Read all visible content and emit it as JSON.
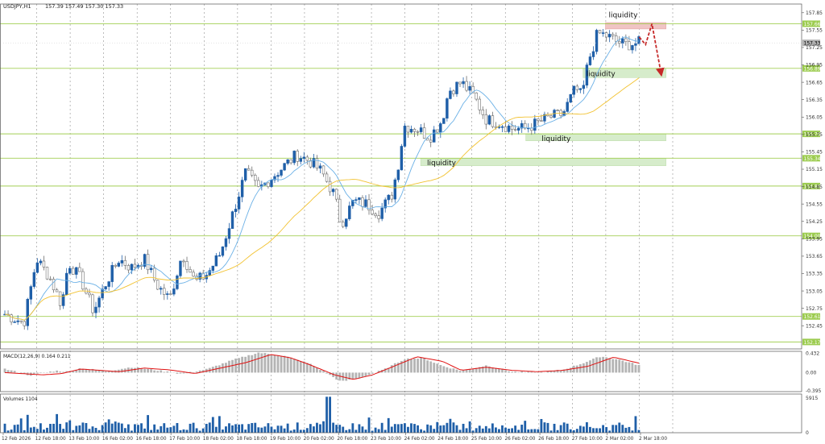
{
  "header": {
    "symbol_label": "USDJPY,H1",
    "ohlc_label": "157.39 157.49 157.30 157.33"
  },
  "colors": {
    "bull": "#1f5fa8",
    "bear": "#6e6e6e",
    "ma_fast": "#6ab0e6",
    "ma_slow": "#f2c230",
    "hline": "#a3cf55",
    "hline_badge": "#9ccc4f",
    "zone_green": "#d6eccb",
    "zone_red": "#f0c4c4",
    "arrow": "#c62828",
    "macd_line": "#e01010",
    "histogram": "#b4b4b4",
    "volume": "#1f5fa8",
    "grid": "#8f8f8f",
    "price_badge": "#b0b0b0"
  },
  "chart_data": [
    {
      "type": "candlestick",
      "title": "USDJPY,H1",
      "ylim": [
        152.05,
        158.0
      ],
      "y_ticks": [
        "157.85",
        "157.55",
        "157.25",
        "156.95",
        "156.65",
        "156.35",
        "156.05",
        "155.75",
        "155.45",
        "155.15",
        "154.85",
        "154.55",
        "154.25",
        "153.95",
        "153.65",
        "153.35",
        "153.05",
        "152.75",
        "152.45"
      ],
      "x_ticks": [
        "12 Feb 2026",
        "12 Feb 18:00",
        "13 Feb 10:00",
        "16 Feb 02:00",
        "16 Feb 18:00",
        "17 Feb 10:00",
        "18 Feb 02:00",
        "18 Feb 18:00",
        "19 Feb 10:00",
        "20 Feb 02:00",
        "20 Feb 18:00",
        "23 Feb 10:00",
        "24 Feb 02:00",
        "24 Feb 18:00",
        "25 Feb 10:00",
        "26 Feb 02:00",
        "26 Feb 18:00",
        "27 Feb 10:00",
        "2 Mar 02:00",
        "2 Mar 18:00"
      ],
      "current_price": "157.33",
      "horizontal_levels": [
        {
          "label": "157.66",
          "value": 157.66
        },
        {
          "label": "156.89",
          "value": 156.89
        },
        {
          "label": "155.76",
          "value": 155.76
        },
        {
          "label": "155.34",
          "value": 155.34
        },
        {
          "label": "154.86",
          "value": 154.86
        },
        {
          "label": "154.00",
          "value": 154.0
        },
        {
          "label": "152.61",
          "value": 152.61
        },
        {
          "label": "152.17",
          "value": 152.17
        }
      ],
      "zones": [
        {
          "kind": "red",
          "y_top": 157.68,
          "y_bottom": 157.57,
          "x_start": 0.945,
          "x_end": 1.04
        },
        {
          "kind": "green",
          "y_top": 156.89,
          "y_bottom": 156.73,
          "x_start": 0.91,
          "x_end": 1.04
        },
        {
          "kind": "green",
          "y_top": 155.76,
          "y_bottom": 155.64,
          "x_start": 0.82,
          "x_end": 1.04
        },
        {
          "kind": "green",
          "y_top": 155.34,
          "y_bottom": 155.21,
          "x_start": 0.655,
          "x_end": 1.04
        }
      ],
      "annotations": [
        {
          "text": "liquidity",
          "x_rel": 0.95,
          "y": 157.81
        },
        {
          "text": "liquidity",
          "x_rel": 0.915,
          "y": 156.8
        },
        {
          "text": "liquidity",
          "x_rel": 0.845,
          "y": 155.68
        },
        {
          "text": "liquidity",
          "x_rel": 0.665,
          "y": 155.26
        }
      ],
      "forecast_path": [
        {
          "x_rel": 0.998,
          "y": 157.43
        },
        {
          "x_rel": 1.008,
          "y": 157.3
        },
        {
          "x_rel": 1.018,
          "y": 157.66
        },
        {
          "x_rel": 1.032,
          "y": 156.82
        }
      ],
      "close_path": [
        [
          0,
          152.65
        ],
        [
          0.03,
          152.5
        ],
        [
          0.05,
          153.6
        ],
        [
          0.07,
          153.3
        ],
        [
          0.09,
          152.8
        ],
        [
          0.1,
          153.55
        ],
        [
          0.12,
          153.25
        ],
        [
          0.14,
          152.7
        ],
        [
          0.16,
          153.2
        ],
        [
          0.18,
          153.6
        ],
        [
          0.2,
          153.45
        ],
        [
          0.22,
          153.6
        ],
        [
          0.24,
          153.15
        ],
        [
          0.26,
          152.9
        ],
        [
          0.28,
          153.7
        ],
        [
          0.3,
          153.2
        ],
        [
          0.32,
          153.35
        ],
        [
          0.34,
          153.7
        ],
        [
          0.36,
          154.4
        ],
        [
          0.38,
          155.1
        ],
        [
          0.4,
          154.8
        ],
        [
          0.42,
          155.0
        ],
        [
          0.44,
          155.2
        ],
        [
          0.46,
          155.4
        ],
        [
          0.48,
          155.3
        ],
        [
          0.5,
          155.1
        ],
        [
          0.52,
          154.7
        ],
        [
          0.53,
          154.2
        ],
        [
          0.55,
          154.6
        ],
        [
          0.57,
          154.55
        ],
        [
          0.59,
          154.4
        ],
        [
          0.61,
          154.7
        ],
        [
          0.62,
          155.2
        ],
        [
          0.63,
          155.9
        ],
        [
          0.65,
          155.85
        ],
        [
          0.67,
          155.7
        ],
        [
          0.69,
          156.0
        ],
        [
          0.7,
          156.5
        ],
        [
          0.72,
          156.65
        ],
        [
          0.74,
          156.4
        ],
        [
          0.76,
          156.0
        ],
        [
          0.78,
          155.95
        ],
        [
          0.8,
          155.85
        ],
        [
          0.82,
          155.85
        ],
        [
          0.84,
          155.95
        ],
        [
          0.86,
          156.05
        ],
        [
          0.88,
          156.1
        ],
        [
          0.9,
          156.55
        ],
        [
          0.91,
          156.4
        ],
        [
          0.92,
          157.0
        ],
        [
          0.935,
          157.5
        ],
        [
          0.95,
          157.45
        ],
        [
          0.965,
          157.35
        ],
        [
          0.98,
          157.3
        ],
        [
          1.0,
          157.33
        ]
      ],
      "moving_averages": [
        {
          "color": "#6ab0e6",
          "period_bars": 10
        },
        {
          "color": "#f2c230",
          "period_bars": 36
        }
      ]
    },
    {
      "type": "macd",
      "label": "MACD(12,26,9) 0.164 0.211",
      "y_ticks": [
        "0.432",
        "0.00",
        "-0.395"
      ],
      "ylim": [
        -0.42,
        0.47
      ],
      "signal_path": [
        [
          0,
          0.0
        ],
        [
          0.06,
          -0.05
        ],
        [
          0.09,
          -0.02
        ],
        [
          0.12,
          0.08
        ],
        [
          0.15,
          0.05
        ],
        [
          0.18,
          0.02
        ],
        [
          0.22,
          0.1
        ],
        [
          0.26,
          0.06
        ],
        [
          0.3,
          -0.02
        ],
        [
          0.34,
          0.1
        ],
        [
          0.38,
          0.22
        ],
        [
          0.42,
          0.4
        ],
        [
          0.45,
          0.33
        ],
        [
          0.48,
          0.18
        ],
        [
          0.52,
          -0.05
        ],
        [
          0.55,
          -0.15
        ],
        [
          0.58,
          -0.05
        ],
        [
          0.61,
          0.12
        ],
        [
          0.65,
          0.35
        ],
        [
          0.69,
          0.25
        ],
        [
          0.72,
          0.05
        ],
        [
          0.76,
          0.12
        ],
        [
          0.8,
          0.05
        ],
        [
          0.84,
          0.02
        ],
        [
          0.88,
          0.05
        ],
        [
          0.92,
          0.14
        ],
        [
          0.96,
          0.34
        ],
        [
          1.0,
          0.211
        ]
      ],
      "hist_path": [
        [
          0,
          0.08
        ],
        [
          0.04,
          -0.06
        ],
        [
          0.08,
          0.04
        ],
        [
          0.1,
          0.02
        ],
        [
          0.12,
          0.1
        ],
        [
          0.16,
          0.03
        ],
        [
          0.2,
          0.12
        ],
        [
          0.24,
          0.05
        ],
        [
          0.28,
          -0.03
        ],
        [
          0.32,
          0.08
        ],
        [
          0.36,
          0.28
        ],
        [
          0.4,
          0.44
        ],
        [
          0.44,
          0.37
        ],
        [
          0.48,
          0.2
        ],
        [
          0.5,
          0.05
        ],
        [
          0.53,
          -0.2
        ],
        [
          0.56,
          -0.12
        ],
        [
          0.6,
          0.08
        ],
        [
          0.63,
          0.3
        ],
        [
          0.66,
          0.32
        ],
        [
          0.69,
          0.15
        ],
        [
          0.72,
          0.04
        ],
        [
          0.76,
          0.16
        ],
        [
          0.8,
          0.02
        ],
        [
          0.84,
          0.0
        ],
        [
          0.88,
          0.06
        ],
        [
          0.91,
          0.2
        ],
        [
          0.94,
          0.36
        ],
        [
          0.97,
          0.28
        ],
        [
          1.0,
          0.164
        ]
      ]
    },
    {
      "type": "volume",
      "label": "Volumes 1104",
      "y_ticks": [
        "5915",
        "0"
      ],
      "ylim": [
        0,
        5915
      ],
      "spike_at": 0.51
    }
  ]
}
